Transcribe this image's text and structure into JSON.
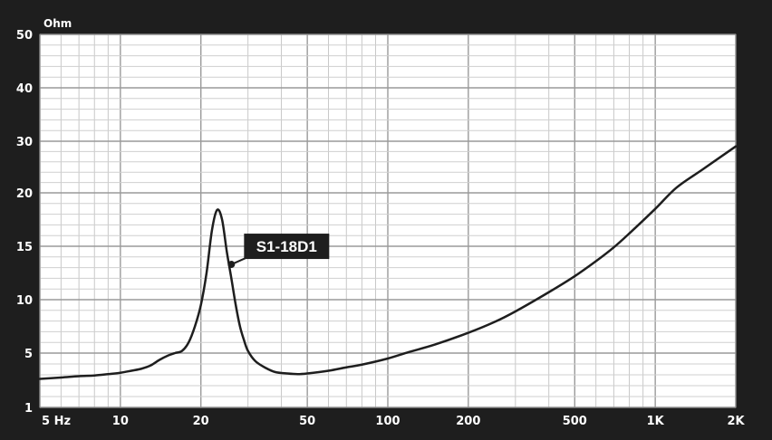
{
  "chart_data": {
    "type": "line",
    "x_scale": "log",
    "xlim": [
      5,
      2000
    ],
    "ylim": [
      1,
      50
    ],
    "y_unit_label": "Ohm",
    "x_ticks": [
      {
        "value": 5,
        "label": "5 Hz"
      },
      {
        "value": 10,
        "label": "10"
      },
      {
        "value": 20,
        "label": "20"
      },
      {
        "value": 50,
        "label": "50"
      },
      {
        "value": 100,
        "label": "100"
      },
      {
        "value": 200,
        "label": "200"
      },
      {
        "value": 500,
        "label": "500"
      },
      {
        "value": 1000,
        "label": "1K"
      },
      {
        "value": 2000,
        "label": "2K"
      }
    ],
    "y_ticks": [
      {
        "value": 1,
        "label": "1"
      },
      {
        "value": 5,
        "label": "5"
      },
      {
        "value": 10,
        "label": "10"
      },
      {
        "value": 15,
        "label": "15"
      },
      {
        "value": 20,
        "label": "20"
      },
      {
        "value": 30,
        "label": "30"
      },
      {
        "value": 40,
        "label": "40"
      },
      {
        "value": 50,
        "label": "50"
      }
    ],
    "grid": true,
    "series": [
      {
        "name": "S1-18D1",
        "x": [
          5,
          6,
          7,
          8,
          9,
          10,
          11,
          12,
          13,
          14,
          15,
          16,
          17,
          18,
          19,
          20,
          21,
          22,
          23,
          24,
          25,
          26,
          27,
          28,
          29,
          30,
          32,
          35,
          38,
          42,
          46,
          50,
          60,
          70,
          80,
          100,
          120,
          150,
          200,
          250,
          300,
          400,
          500,
          600,
          700,
          800,
          1000,
          1200,
          1500,
          2000
        ],
        "y": [
          3.1,
          3.2,
          3.3,
          3.35,
          3.45,
          3.55,
          3.7,
          3.85,
          4.1,
          4.5,
          4.8,
          5.0,
          5.2,
          6.0,
          7.5,
          9.5,
          12.5,
          16.5,
          18.4,
          17.5,
          14.5,
          12.0,
          9.5,
          7.5,
          6.2,
          5.2,
          4.4,
          3.9,
          3.6,
          3.5,
          3.45,
          3.5,
          3.7,
          3.95,
          4.15,
          4.6,
          5.1,
          5.8,
          6.9,
          7.9,
          8.9,
          10.7,
          12.2,
          13.6,
          14.9,
          16.2,
          18.5,
          21.0,
          24.5,
          29.0
        ]
      }
    ],
    "callout": {
      "label": "S1-18D1",
      "x": 26,
      "y": 13.3
    }
  }
}
